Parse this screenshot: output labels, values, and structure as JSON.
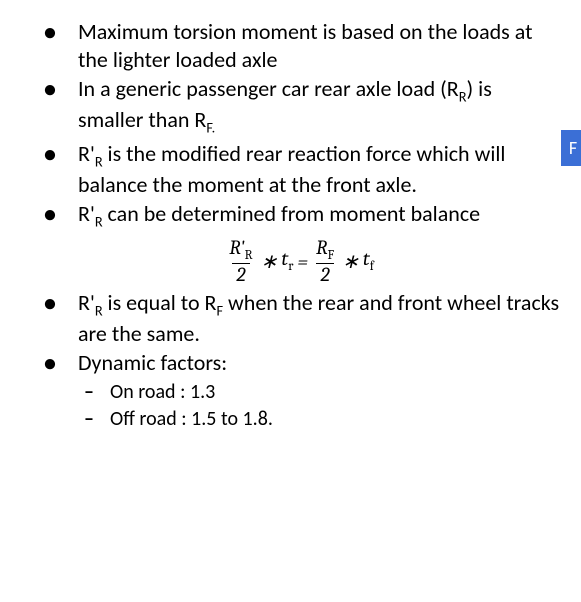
{
  "bullets": {
    "b1": "Maximum torsion moment is based on the loads at the lighter loaded axle",
    "b2_pre": "In a generic passenger car rear axle load (R",
    "b2_sub1": "R",
    "b2_mid": ") is smaller than R",
    "b2_sub2": "F.",
    "b3_pre": "R'",
    "b3_sub1": "R",
    "b3_mid": " is the modified rear reaction force which will balance the moment at the front axle.",
    "b4_pre": "R'",
    "b4_sub1": "R",
    "b4_mid": " can be determined from moment balance",
    "b5_pre": "R'",
    "b5_sub1": "R",
    "b5_mid": " is equal to R",
    "b5_sub2": "F",
    "b5_end": " when the rear and front wheel tracks are the same.",
    "b6": "Dynamic factors:",
    "sub1": "On road : 1.3",
    "sub2": "Off road  : 1.5 to 1.8."
  },
  "equation": {
    "num1_a": "R'",
    "num1_sub": "R",
    "den1": "2",
    "op1": "∗",
    "t1": "t",
    "t1_sub": "r",
    "eq": "=",
    "num2_a": "R",
    "num2_sub": "F",
    "den2": "2",
    "op2": "∗",
    "t2": "t",
    "t2_sub": "f"
  },
  "sidetab": "F"
}
